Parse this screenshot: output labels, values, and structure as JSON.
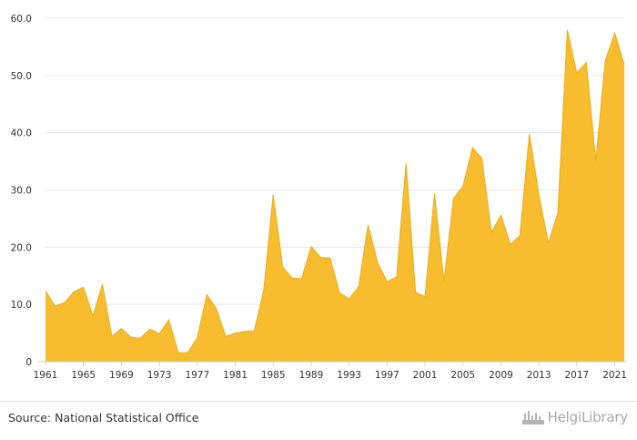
{
  "chart_data": {
    "type": "area",
    "x": [
      1961,
      1962,
      1963,
      1964,
      1965,
      1966,
      1967,
      1968,
      1969,
      1970,
      1971,
      1972,
      1973,
      1974,
      1975,
      1976,
      1977,
      1978,
      1979,
      1980,
      1981,
      1982,
      1983,
      1984,
      1985,
      1986,
      1987,
      1988,
      1989,
      1990,
      1991,
      1992,
      1993,
      1994,
      1995,
      1996,
      1997,
      1998,
      1999,
      2000,
      2001,
      2002,
      2003,
      2004,
      2005,
      2006,
      2007,
      2008,
      2009,
      2010,
      2011,
      2012,
      2013,
      2014,
      2015,
      2016,
      2017,
      2018,
      2019,
      2020,
      2021,
      2022
    ],
    "values": [
      12.4,
      9.7,
      10.3,
      12.2,
      13.0,
      8.0,
      13.5,
      4.4,
      5.8,
      4.3,
      4.1,
      5.7,
      4.9,
      7.3,
      1.6,
      1.6,
      4.2,
      11.7,
      9.3,
      4.4,
      5.0,
      5.3,
      5.4,
      12.5,
      29.2,
      16.5,
      14.6,
      14.5,
      20.1,
      18.2,
      18.1,
      12.0,
      11.0,
      13.1,
      23.9,
      17.3,
      14.0,
      14.8,
      34.7,
      12.1,
      11.4,
      29.4,
      14.1,
      28.5,
      30.6,
      37.4,
      35.5,
      22.6,
      25.6,
      20.5,
      22.0,
      39.8,
      29.2,
      20.7,
      26.0,
      58.0,
      50.4,
      52.3,
      35.1,
      52.6,
      57.4,
      51.9
    ],
    "x_ticks": [
      "1961",
      "1965",
      "1969",
      "1973",
      "1977",
      "1981",
      "1985",
      "1989",
      "1993",
      "1997",
      "2001",
      "2005",
      "2009",
      "2013",
      "2017",
      "2021"
    ],
    "y_ticks": [
      "0",
      "10.0",
      "20.0",
      "30.0",
      "40.0",
      "50.0",
      "60.0"
    ],
    "xlim": [
      1961,
      2022
    ],
    "ylim": [
      0,
      60
    ],
    "grid": true,
    "title": "",
    "xlabel": "",
    "ylabel": "",
    "colors": {
      "fill": "#F8BD2E",
      "stroke": "#EAAE1B",
      "grid": "#e6e6e6",
      "axis": "#cfcfcf",
      "tick_text": "#333333"
    }
  },
  "footer": {
    "source": "Source: National Statistical Office",
    "logo_text": "HelgiLibrary",
    "logo_icon": "factory-bars-icon"
  }
}
